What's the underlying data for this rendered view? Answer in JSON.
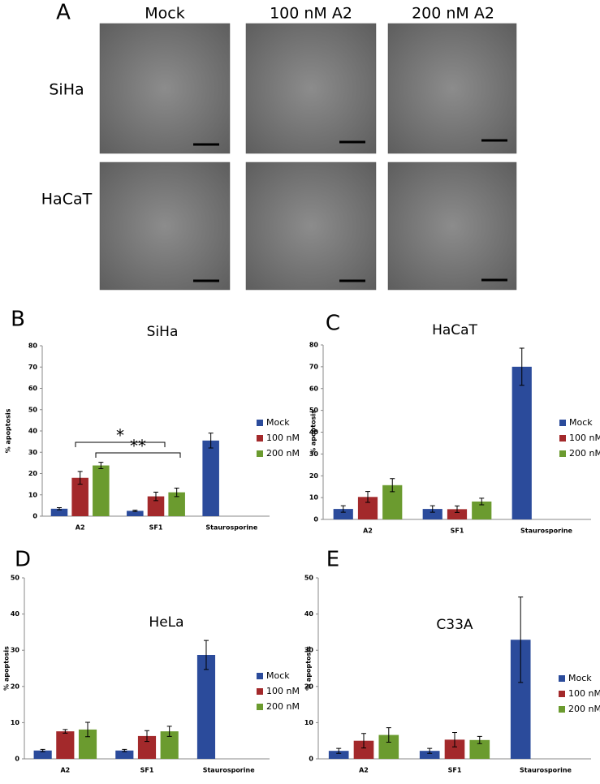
{
  "panel_a": {
    "panel": "A",
    "columns": [
      "Mock",
      "100 nM A2",
      "200 nM A2"
    ],
    "rows": [
      "SiHa",
      "HaCaT"
    ]
  },
  "chart_data": [
    {
      "type": "bar",
      "panel": "B",
      "title": "SiHa",
      "ylabel": "% apoptosis",
      "categories": [
        "A2",
        "SF1",
        "Staurosporine"
      ],
      "ylim": [
        0,
        80
      ],
      "yticks": [
        0,
        10,
        20,
        30,
        40,
        50,
        60,
        70,
        80
      ],
      "series": [
        {
          "name": "Mock",
          "color": "#2b4b9b",
          "values": [
            3.5,
            2.5,
            35.5
          ],
          "errors": [
            0.5,
            0.3,
            3.5
          ]
        },
        {
          "name": "100 nM",
          "color": "#a3292b",
          "values": [
            18,
            9.3,
            null
          ],
          "errors": [
            3,
            2,
            null
          ]
        },
        {
          "name": "200 nM",
          "color": "#6b9b2f",
          "values": [
            23.8,
            11.2,
            null
          ],
          "errors": [
            1.5,
            2,
            null
          ]
        }
      ],
      "annotations": [
        "*",
        "**"
      ]
    },
    {
      "type": "bar",
      "panel": "C",
      "title": "HaCaT",
      "ylabel": "% apoptosis",
      "categories": [
        "A2",
        "SF1",
        "Staurosporine"
      ],
      "ylim": [
        0,
        80
      ],
      "yticks": [
        0,
        10,
        20,
        30,
        40,
        50,
        60,
        70,
        80
      ],
      "series": [
        {
          "name": "Mock",
          "color": "#2b4b9b",
          "values": [
            4.8,
            4.8,
            70
          ],
          "errors": [
            1.5,
            1.5,
            8.5
          ]
        },
        {
          "name": "100 nM",
          "color": "#a3292b",
          "values": [
            10.3,
            4.7,
            null
          ],
          "errors": [
            2.5,
            1.5,
            null
          ]
        },
        {
          "name": "200 nM",
          "color": "#6b9b2f",
          "values": [
            15.7,
            8.2,
            null
          ],
          "errors": [
            3,
            1.5,
            null
          ]
        }
      ]
    },
    {
      "type": "bar",
      "panel": "D",
      "title": "HeLa",
      "ylabel": "% apoptosis",
      "categories": [
        "A2",
        "SF1",
        "Staurosporine"
      ],
      "ylim": [
        0,
        50
      ],
      "yticks": [
        0,
        10,
        20,
        30,
        40,
        50
      ],
      "series": [
        {
          "name": "Mock",
          "color": "#2b4b9b",
          "values": [
            2.3,
            2.3,
            28.7
          ],
          "errors": [
            0.3,
            0.3,
            4
          ]
        },
        {
          "name": "100 nM",
          "color": "#a3292b",
          "values": [
            7.6,
            6.3,
            null
          ],
          "errors": [
            0.5,
            1.5,
            null
          ]
        },
        {
          "name": "200 nM",
          "color": "#6b9b2f",
          "values": [
            8.1,
            7.6,
            null
          ],
          "errors": [
            2,
            1.4,
            null
          ]
        }
      ]
    },
    {
      "type": "bar",
      "panel": "E",
      "title": "C33A",
      "ylabel": "% apoptosis",
      "categories": [
        "A2",
        "SF1",
        "Staurosporine"
      ],
      "ylim": [
        0,
        50
      ],
      "yticks": [
        0,
        10,
        20,
        30,
        40,
        50
      ],
      "series": [
        {
          "name": "Mock",
          "color": "#2b4b9b",
          "values": [
            2.2,
            2.2,
            32.9
          ],
          "errors": [
            0.7,
            0.7,
            11.8
          ]
        },
        {
          "name": "100 nM",
          "color": "#a3292b",
          "values": [
            5,
            5.3,
            null
          ],
          "errors": [
            2,
            2,
            null
          ]
        },
        {
          "name": "200 nM",
          "color": "#6b9b2f",
          "values": [
            6.6,
            5.2,
            null
          ],
          "errors": [
            2,
            1,
            null
          ]
        }
      ]
    }
  ]
}
